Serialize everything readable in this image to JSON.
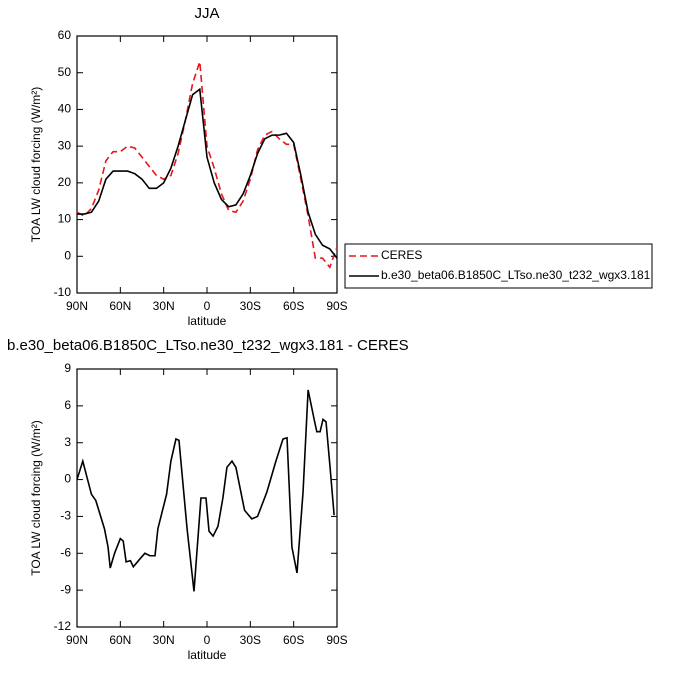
{
  "chart_data": [
    {
      "type": "line",
      "title": "JJA",
      "xlabel": "latitude",
      "ylabel": "TOA LW cloud forcing (W/m²)",
      "xlim": [
        90,
        -90
      ],
      "xticks": [
        {
          "value": 90,
          "label": "90N"
        },
        {
          "value": 60,
          "label": "60N"
        },
        {
          "value": 30,
          "label": "30N"
        },
        0,
        {
          "value": -30,
          "label": "30S"
        },
        {
          "value": -60,
          "label": "60S"
        },
        {
          "value": -90,
          "label": "90S"
        }
      ],
      "ylim": [
        -10,
        60
      ],
      "yticks": [
        -10,
        0,
        10,
        20,
        30,
        40,
        50,
        60
      ],
      "legend": "right",
      "x": [
        90,
        85,
        80,
        75,
        70,
        65,
        60,
        55,
        50,
        45,
        40,
        35,
        30,
        25,
        20,
        15,
        10,
        5,
        0,
        -5,
        -10,
        -15,
        -20,
        -25,
        -30,
        -35,
        -40,
        -45,
        -50,
        -55,
        -60,
        -65,
        -70,
        -75,
        -80,
        -85,
        -90
      ],
      "series": [
        {
          "name": "CERES",
          "color": "#e8161b",
          "dash": "dashed",
          "values": [
            12,
            11,
            13,
            18,
            26,
            28.5,
            28.5,
            30,
            29.5,
            27,
            24.5,
            22,
            21,
            22,
            28,
            37,
            47,
            53,
            30,
            24,
            17,
            12.5,
            12,
            15,
            21,
            29,
            33,
            34,
            32,
            30.5,
            30.5,
            21,
            11,
            -0.5,
            -0.5,
            -3,
            2.5
          ]
        },
        {
          "name": "b.e30_beta06.B1850C_LTso.ne30_t232_wgx3.181",
          "color": "#000000",
          "dash": "solid",
          "values": [
            11.5,
            11.5,
            12,
            15,
            21,
            23.2,
            23.2,
            23.2,
            22.5,
            21,
            18.5,
            18.5,
            20,
            24,
            30,
            37,
            44,
            45.5,
            27,
            20,
            15.5,
            13.5,
            14,
            17,
            22,
            28,
            32,
            33,
            33,
            33.5,
            31,
            22,
            12,
            6,
            3,
            2,
            -0.5
          ]
        }
      ]
    },
    {
      "type": "line",
      "title": "b.e30_beta06.B1850C_LTso.ne30_t232_wgx3.181 - CERES",
      "xlabel": "latitude",
      "ylabel": "TOA LW cloud forcing (W/m²)",
      "xlim": [
        90,
        -90
      ],
      "xticks": [
        {
          "value": 90,
          "label": "90N"
        },
        {
          "value": 60,
          "label": "60N"
        },
        {
          "value": 30,
          "label": "30N"
        },
        0,
        {
          "value": -30,
          "label": "30S"
        },
        {
          "value": -60,
          "label": "60S"
        },
        {
          "value": -90,
          "label": "90S"
        }
      ],
      "ylim": [
        -12,
        9
      ],
      "yticks": [
        -12,
        -9,
        -6,
        -3,
        0,
        3,
        6,
        9
      ],
      "x": [
        90,
        86,
        80,
        77,
        71,
        68.5,
        67,
        64,
        60,
        58,
        56,
        53,
        51,
        46,
        43,
        39.5,
        36,
        34,
        28,
        25,
        21.5,
        19.4,
        13.8,
        9,
        4.2,
        0.7,
        -1.4,
        -4.2,
        -7.6,
        -11,
        -13.8,
        -17.3,
        -20,
        -26,
        -31,
        -35,
        -41.5,
        -47.7,
        -52.6,
        -55.4,
        -58.8,
        -62.3,
        -66.5,
        -70,
        -74,
        -76,
        -78.3,
        -80.3,
        -82.4,
        -85.2,
        -88
      ],
      "series": [
        {
          "color": "#000000",
          "dash": "solid",
          "values": [
            0,
            1.5,
            -1.2,
            -1.7,
            -4,
            -5.5,
            -7.2,
            -6,
            -4.8,
            -5,
            -6.7,
            -6.6,
            -7.1,
            -6.4,
            -6,
            -6.2,
            -6.2,
            -4,
            -1.2,
            1.5,
            3.3,
            3.2,
            -4,
            -9.1,
            -1.5,
            -1.5,
            -4.2,
            -4.6,
            -3.8,
            -1.5,
            1,
            1.5,
            1,
            -2.5,
            -3.2,
            -3,
            -1,
            1.5,
            3.3,
            3.4,
            -5.5,
            -7.6,
            -1,
            7.3,
            5,
            3.9,
            3.9,
            4.9,
            4.7,
            1,
            -2.9
          ]
        }
      ]
    }
  ]
}
